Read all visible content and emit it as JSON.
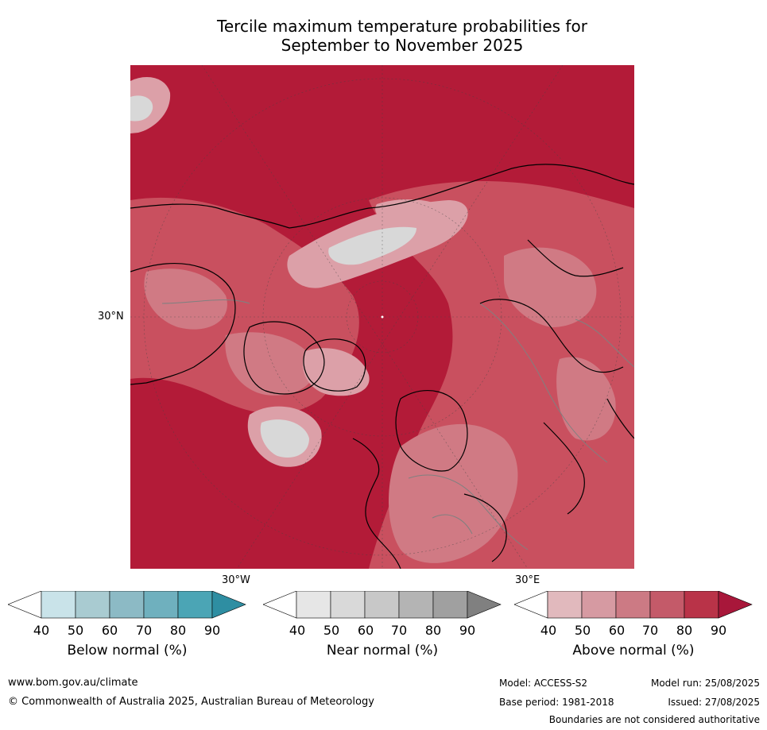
{
  "title": {
    "line1": "Tercile maximum temperature probabilities for",
    "line2": "September to November 2025"
  },
  "map": {
    "lat_label": "30°N",
    "lon_labels": [
      "30°W",
      "30°E"
    ],
    "colors": {
      "ocean_high": "#b31b38",
      "prob_80": "#c0394e",
      "prob_70": "#c9505f",
      "prob_60": "#d07a84",
      "prob_50": "#dca0a8",
      "near_normal": "#d8d8d8",
      "coastline": "#000000",
      "borders": "#808080"
    }
  },
  "colorbars": [
    {
      "name": "below-normal",
      "label": "Below normal (%)",
      "ticks": [
        "40",
        "50",
        "60",
        "70",
        "80",
        "90"
      ],
      "colors": [
        "#ffffff",
        "#c9e3e9",
        "#a9cbd1",
        "#8cbac5",
        "#6fb0be",
        "#4ba5b5",
        "#2e8ea2"
      ]
    },
    {
      "name": "near-normal",
      "label": "Near normal (%)",
      "ticks": [
        "40",
        "50",
        "60",
        "70",
        "80",
        "90"
      ],
      "colors": [
        "#ffffff",
        "#e6e6e6",
        "#d9d9d9",
        "#c8c8c8",
        "#b4b4b4",
        "#a0a0a0",
        "#808080"
      ]
    },
    {
      "name": "above-normal",
      "label": "Above normal (%)",
      "ticks": [
        "40",
        "50",
        "60",
        "70",
        "80",
        "90"
      ],
      "colors": [
        "#ffffff",
        "#e1b9bd",
        "#d69aa2",
        "#cc7a84",
        "#c45a69",
        "#b93348",
        "#a8173a"
      ]
    }
  ],
  "footer": {
    "website": "www.bom.gov.au/climate",
    "copyright": "© Commonwealth of Australia 2025, Australian Bureau of Meteorology",
    "model": "Model: ACCESS-S2",
    "base_period": "Base period: 1981-2018",
    "model_run": "Model run: 25/08/2025",
    "issued": "Issued: 27/08/2025",
    "disclaimer": "Boundaries are not considered authoritative"
  }
}
